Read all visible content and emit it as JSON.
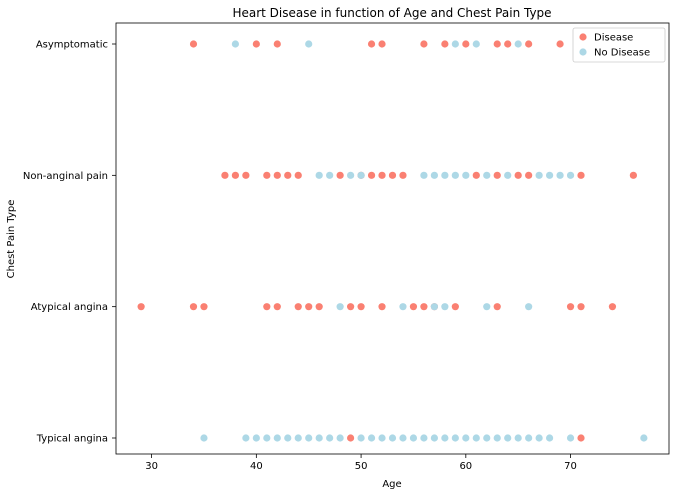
{
  "chart_data": {
    "type": "scatter",
    "title": "Heart Disease in function of Age and Chest Pain Type",
    "xlabel": "Age",
    "ylabel": "Chest Pain Type",
    "xlim": [
      26.6,
      79.4
    ],
    "x_ticks": [
      30,
      40,
      50,
      60,
      70
    ],
    "categories": [
      "Typical angina",
      "Atypical angina",
      "Non-anginal pain",
      "Asymptomatic"
    ],
    "grid": false,
    "legend_position": "top-right",
    "series": [
      {
        "name": "Disease",
        "color": "#fa8072",
        "points": [
          {
            "x": 34,
            "y": "Asymptomatic"
          },
          {
            "x": 40,
            "y": "Asymptomatic"
          },
          {
            "x": 42,
            "y": "Asymptomatic"
          },
          {
            "x": 51,
            "y": "Asymptomatic"
          },
          {
            "x": 52,
            "y": "Asymptomatic"
          },
          {
            "x": 56,
            "y": "Asymptomatic"
          },
          {
            "x": 58,
            "y": "Asymptomatic"
          },
          {
            "x": 60,
            "y": "Asymptomatic"
          },
          {
            "x": 63,
            "y": "Asymptomatic"
          },
          {
            "x": 64,
            "y": "Asymptomatic"
          },
          {
            "x": 66,
            "y": "Asymptomatic"
          },
          {
            "x": 69,
            "y": "Asymptomatic"
          },
          {
            "x": 37,
            "y": "Non-anginal pain"
          },
          {
            "x": 38,
            "y": "Non-anginal pain"
          },
          {
            "x": 39,
            "y": "Non-anginal pain"
          },
          {
            "x": 41,
            "y": "Non-anginal pain"
          },
          {
            "x": 42,
            "y": "Non-anginal pain"
          },
          {
            "x": 43,
            "y": "Non-anginal pain"
          },
          {
            "x": 44,
            "y": "Non-anginal pain"
          },
          {
            "x": 48,
            "y": "Non-anginal pain"
          },
          {
            "x": 50,
            "y": "Non-anginal pain"
          },
          {
            "x": 51,
            "y": "Non-anginal pain"
          },
          {
            "x": 52,
            "y": "Non-anginal pain"
          },
          {
            "x": 53,
            "y": "Non-anginal pain"
          },
          {
            "x": 54,
            "y": "Non-anginal pain"
          },
          {
            "x": 61,
            "y": "Non-anginal pain"
          },
          {
            "x": 63,
            "y": "Non-anginal pain"
          },
          {
            "x": 65,
            "y": "Non-anginal pain"
          },
          {
            "x": 66,
            "y": "Non-anginal pain"
          },
          {
            "x": 71,
            "y": "Non-anginal pain"
          },
          {
            "x": 76,
            "y": "Non-anginal pain"
          },
          {
            "x": 29,
            "y": "Atypical angina"
          },
          {
            "x": 34,
            "y": "Atypical angina"
          },
          {
            "x": 35,
            "y": "Atypical angina"
          },
          {
            "x": 41,
            "y": "Atypical angina"
          },
          {
            "x": 42,
            "y": "Atypical angina"
          },
          {
            "x": 44,
            "y": "Atypical angina"
          },
          {
            "x": 45,
            "y": "Atypical angina"
          },
          {
            "x": 46,
            "y": "Atypical angina"
          },
          {
            "x": 49,
            "y": "Atypical angina"
          },
          {
            "x": 50,
            "y": "Atypical angina"
          },
          {
            "x": 52,
            "y": "Atypical angina"
          },
          {
            "x": 55,
            "y": "Atypical angina"
          },
          {
            "x": 56,
            "y": "Atypical angina"
          },
          {
            "x": 57,
            "y": "Atypical angina"
          },
          {
            "x": 59,
            "y": "Atypical angina"
          },
          {
            "x": 63,
            "y": "Atypical angina"
          },
          {
            "x": 70,
            "y": "Atypical angina"
          },
          {
            "x": 71,
            "y": "Atypical angina"
          },
          {
            "x": 74,
            "y": "Atypical angina"
          },
          {
            "x": 49,
            "y": "Typical angina"
          },
          {
            "x": 71,
            "y": "Typical angina"
          }
        ]
      },
      {
        "name": "No Disease",
        "color": "#add8e6",
        "points": [
          {
            "x": 38,
            "y": "Asymptomatic"
          },
          {
            "x": 45,
            "y": "Asymptomatic"
          },
          {
            "x": 59,
            "y": "Asymptomatic"
          },
          {
            "x": 61,
            "y": "Asymptomatic"
          },
          {
            "x": 65,
            "y": "Asymptomatic"
          },
          {
            "x": 46,
            "y": "Non-anginal pain"
          },
          {
            "x": 47,
            "y": "Non-anginal pain"
          },
          {
            "x": 49,
            "y": "Non-anginal pain"
          },
          {
            "x": 50,
            "y": "Non-anginal pain"
          },
          {
            "x": 56,
            "y": "Non-anginal pain"
          },
          {
            "x": 57,
            "y": "Non-anginal pain"
          },
          {
            "x": 58,
            "y": "Non-anginal pain"
          },
          {
            "x": 59,
            "y": "Non-anginal pain"
          },
          {
            "x": 60,
            "y": "Non-anginal pain"
          },
          {
            "x": 62,
            "y": "Non-anginal pain"
          },
          {
            "x": 64,
            "y": "Non-anginal pain"
          },
          {
            "x": 67,
            "y": "Non-anginal pain"
          },
          {
            "x": 68,
            "y": "Non-anginal pain"
          },
          {
            "x": 69,
            "y": "Non-anginal pain"
          },
          {
            "x": 70,
            "y": "Non-anginal pain"
          },
          {
            "x": 48,
            "y": "Atypical angina"
          },
          {
            "x": 54,
            "y": "Atypical angina"
          },
          {
            "x": 57,
            "y": "Atypical angina"
          },
          {
            "x": 58,
            "y": "Atypical angina"
          },
          {
            "x": 62,
            "y": "Atypical angina"
          },
          {
            "x": 66,
            "y": "Atypical angina"
          },
          {
            "x": 35,
            "y": "Typical angina"
          },
          {
            "x": 39,
            "y": "Typical angina"
          },
          {
            "x": 40,
            "y": "Typical angina"
          },
          {
            "x": 41,
            "y": "Typical angina"
          },
          {
            "x": 42,
            "y": "Typical angina"
          },
          {
            "x": 43,
            "y": "Typical angina"
          },
          {
            "x": 44,
            "y": "Typical angina"
          },
          {
            "x": 45,
            "y": "Typical angina"
          },
          {
            "x": 46,
            "y": "Typical angina"
          },
          {
            "x": 47,
            "y": "Typical angina"
          },
          {
            "x": 48,
            "y": "Typical angina"
          },
          {
            "x": 50,
            "y": "Typical angina"
          },
          {
            "x": 51,
            "y": "Typical angina"
          },
          {
            "x": 52,
            "y": "Typical angina"
          },
          {
            "x": 53,
            "y": "Typical angina"
          },
          {
            "x": 54,
            "y": "Typical angina"
          },
          {
            "x": 55,
            "y": "Typical angina"
          },
          {
            "x": 56,
            "y": "Typical angina"
          },
          {
            "x": 57,
            "y": "Typical angina"
          },
          {
            "x": 58,
            "y": "Typical angina"
          },
          {
            "x": 59,
            "y": "Typical angina"
          },
          {
            "x": 60,
            "y": "Typical angina"
          },
          {
            "x": 61,
            "y": "Typical angina"
          },
          {
            "x": 62,
            "y": "Typical angina"
          },
          {
            "x": 63,
            "y": "Typical angina"
          },
          {
            "x": 64,
            "y": "Typical angina"
          },
          {
            "x": 65,
            "y": "Typical angina"
          },
          {
            "x": 66,
            "y": "Typical angina"
          },
          {
            "x": 67,
            "y": "Typical angina"
          },
          {
            "x": 68,
            "y": "Typical angina"
          },
          {
            "x": 70,
            "y": "Typical angina"
          },
          {
            "x": 77,
            "y": "Typical angina"
          }
        ]
      }
    ]
  }
}
